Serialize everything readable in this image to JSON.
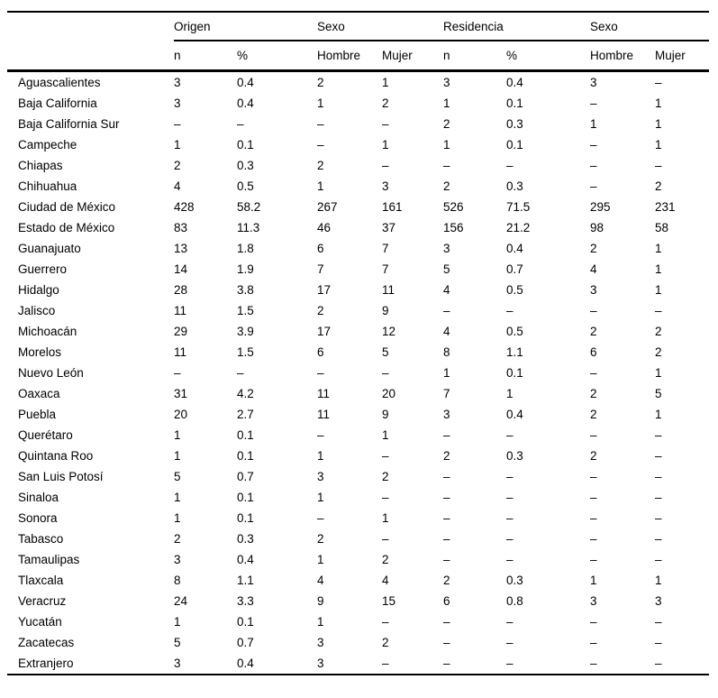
{
  "page": {
    "background_color": "#ffffff",
    "text_color": "#000000",
    "rule_color": "#000000"
  },
  "table": {
    "column_groups": [
      {
        "label": "",
        "span": 1,
        "underline": false
      },
      {
        "label": "Origen",
        "span": 2,
        "underline": true
      },
      {
        "label": "Sexo",
        "span": 2,
        "underline": true
      },
      {
        "label": "Residencia",
        "span": 2,
        "underline": true
      },
      {
        "label": "Sexo",
        "span": 2,
        "underline": true
      }
    ],
    "column_headers": [
      "",
      "n",
      "%",
      "Hombre",
      "Mujer",
      "n",
      "%",
      "Hombre",
      "Mujer"
    ],
    "empty_marker": "–",
    "rows": [
      [
        "Aguascalientes",
        "3",
        "0.4",
        "2",
        "1",
        "3",
        "0.4",
        "3",
        "–"
      ],
      [
        "Baja California",
        "3",
        "0.4",
        "1",
        "2",
        "1",
        "0.1",
        "–",
        "1"
      ],
      [
        "Baja California Sur",
        "–",
        "–",
        "–",
        "–",
        "2",
        "0.3",
        "1",
        "1"
      ],
      [
        "Campeche",
        "1",
        "0.1",
        "–",
        "1",
        "1",
        "0.1",
        "–",
        "1"
      ],
      [
        "Chiapas",
        "2",
        "0.3",
        "2",
        "–",
        "–",
        "–",
        "–",
        "–"
      ],
      [
        "Chihuahua",
        "4",
        "0.5",
        "1",
        "3",
        "2",
        "0.3",
        "–",
        "2"
      ],
      [
        "Ciudad de México",
        "428",
        "58.2",
        "267",
        "161",
        "526",
        "71.5",
        "295",
        "231"
      ],
      [
        "Estado de México",
        "83",
        "11.3",
        "46",
        "37",
        "156",
        "21.2",
        "98",
        "58"
      ],
      [
        "Guanajuato",
        "13",
        "1.8",
        "6",
        "7",
        "3",
        "0.4",
        "2",
        "1"
      ],
      [
        "Guerrero",
        "14",
        "1.9",
        "7",
        "7",
        "5",
        "0.7",
        "4",
        "1"
      ],
      [
        "Hidalgo",
        "28",
        "3.8",
        "17",
        "11",
        "4",
        "0.5",
        "3",
        "1"
      ],
      [
        "Jalisco",
        "11",
        "1.5",
        "2",
        "9",
        "–",
        "–",
        "–",
        "–"
      ],
      [
        "Michoacán",
        "29",
        "3.9",
        "17",
        "12",
        "4",
        "0.5",
        "2",
        "2"
      ],
      [
        "Morelos",
        "11",
        "1.5",
        "6",
        "5",
        "8",
        "1.1",
        "6",
        "2"
      ],
      [
        "Nuevo León",
        "–",
        "–",
        "–",
        "–",
        "1",
        "0.1",
        "–",
        "1"
      ],
      [
        "Oaxaca",
        "31",
        "4.2",
        "11",
        "20",
        "7",
        "1",
        "2",
        "5"
      ],
      [
        "Puebla",
        "20",
        "2.7",
        "11",
        "9",
        "3",
        "0.4",
        "2",
        "1"
      ],
      [
        "Querétaro",
        "1",
        "0.1",
        "–",
        "1",
        "–",
        "–",
        "–",
        "–"
      ],
      [
        "Quintana Roo",
        "1",
        "0.1",
        "1",
        "–",
        "2",
        "0.3",
        "2",
        "–"
      ],
      [
        "San Luis Potosí",
        "5",
        "0.7",
        "3",
        "2",
        "–",
        "–",
        "–",
        "–"
      ],
      [
        "Sinaloa",
        "1",
        "0.1",
        "1",
        "–",
        "–",
        "–",
        "–",
        "–"
      ],
      [
        "Sonora",
        "1",
        "0.1",
        "–",
        "1",
        "–",
        "–",
        "–",
        "–"
      ],
      [
        "Tabasco",
        "2",
        "0.3",
        "2",
        "–",
        "–",
        "–",
        "–",
        "–"
      ],
      [
        "Tamaulipas",
        "3",
        "0.4",
        "1",
        "2",
        "–",
        "–",
        "–",
        "–"
      ],
      [
        "Tlaxcala",
        "8",
        "1.1",
        "4",
        "4",
        "2",
        "0.3",
        "1",
        "1"
      ],
      [
        "Veracruz",
        "24",
        "3.3",
        "9",
        "15",
        "6",
        "0.8",
        "3",
        "3"
      ],
      [
        "Yucatán",
        "1",
        "0.1",
        "1",
        "–",
        "–",
        "–",
        "–",
        "–"
      ],
      [
        "Zacatecas",
        "5",
        "0.7",
        "3",
        "2",
        "–",
        "–",
        "–",
        "–"
      ],
      [
        "Extranjero",
        "3",
        "0.4",
        "3",
        "–",
        "–",
        "–",
        "–",
        "–"
      ]
    ]
  }
}
